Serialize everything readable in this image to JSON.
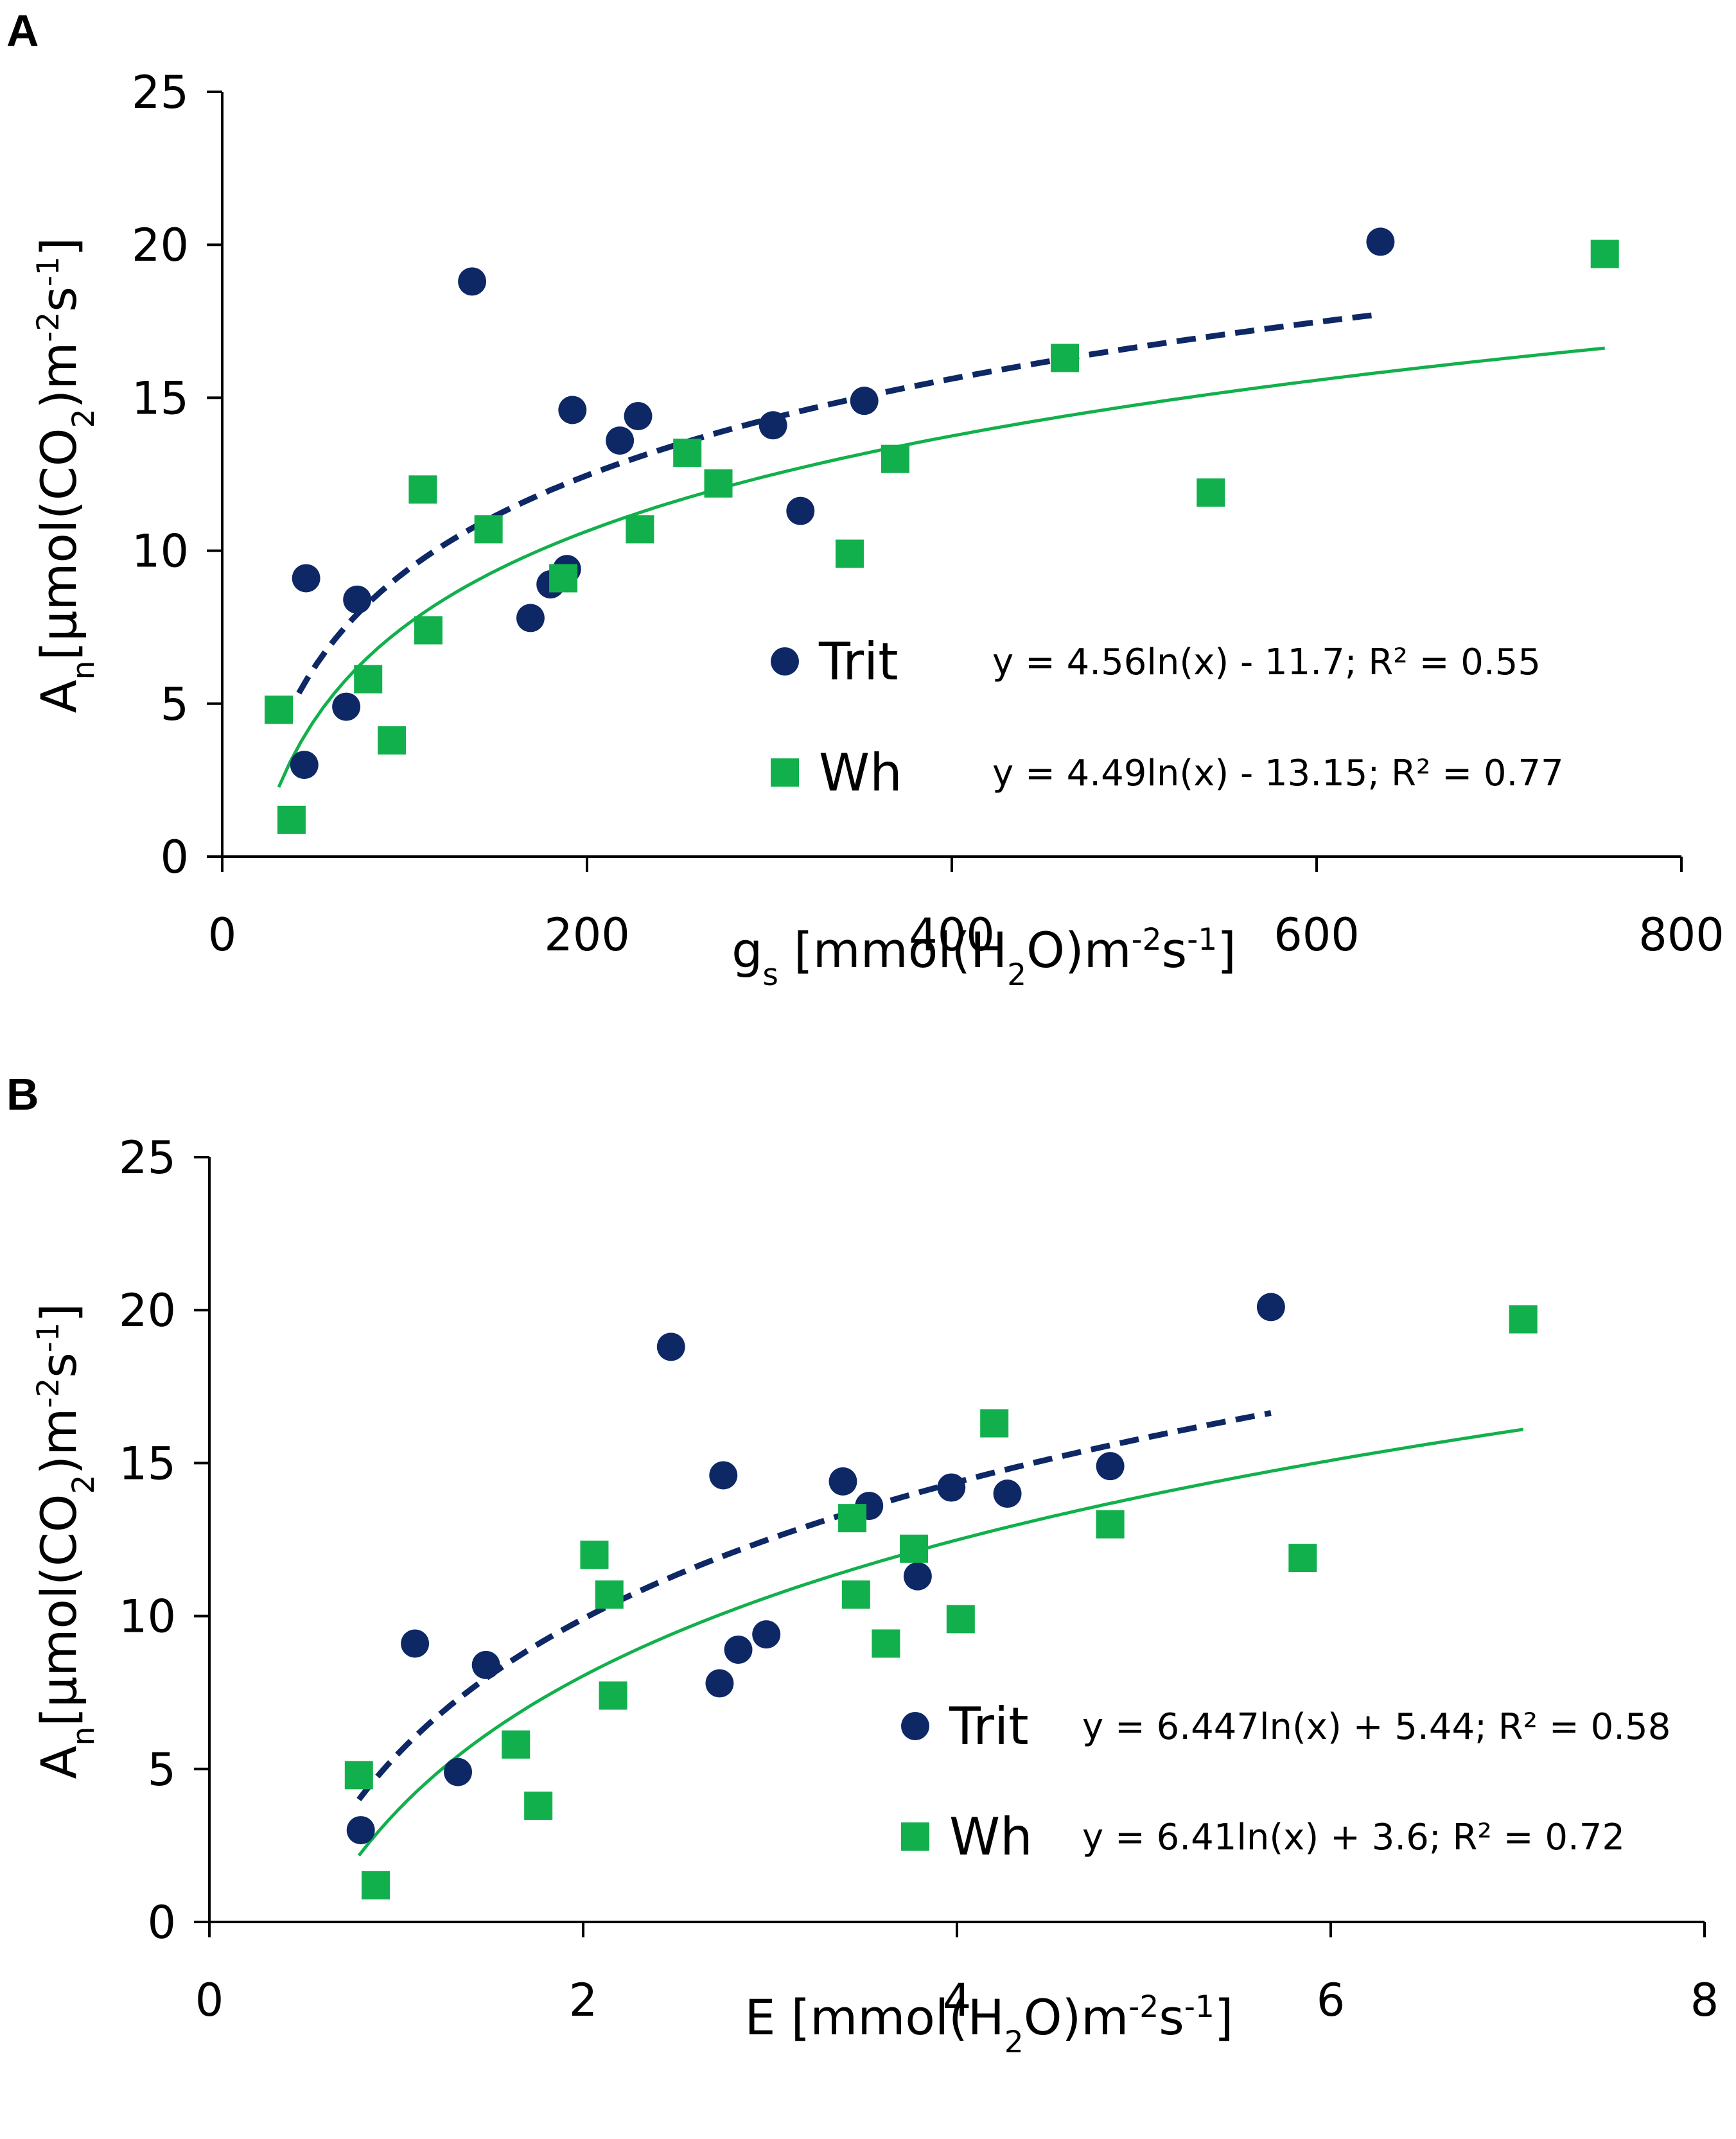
{
  "colors": {
    "trit": "#0e2866",
    "wh": "#12b04c",
    "axis": "#000000"
  },
  "chart_data": [
    {
      "panel": "A",
      "type": "scatter",
      "xlabel": {
        "base": "g",
        "sub": "s",
        "text": " [mmol(H",
        "sub2": "2",
        "text2": "O)m",
        "sup": "-2",
        "text3": "s",
        "sup2": "-1",
        "text4": "]"
      },
      "ylabel": {
        "base": "A",
        "sub": "n",
        "text": "[µmol(CO",
        "sub2": "2",
        "text2": ")m",
        "sup": "-2",
        "text3": "s",
        "sup2": "-1",
        "text4": "]"
      },
      "xlim": [
        0,
        800
      ],
      "ylim": [
        0,
        25
      ],
      "xticks": [
        "0",
        "200",
        "400",
        "600",
        "800"
      ],
      "yticks": [
        "0",
        "5",
        "10",
        "15",
        "20",
        "25"
      ],
      "series": [
        {
          "name": "Trit",
          "marker": "circle",
          "equation": "y = 4.56ln(x) - 11.7; R² = 0.55",
          "fit": {
            "a": 4.56,
            "b": -11.7,
            "from": 42,
            "to": 635,
            "dashed": true
          },
          "points": [
            [
              45,
              3.0
            ],
            [
              46,
              9.1
            ],
            [
              68,
              4.9
            ],
            [
              74,
              8.4
            ],
            [
              137,
              18.8
            ],
            [
              169,
              7.8
            ],
            [
              180,
              8.9
            ],
            [
              189,
              9.4
            ],
            [
              192,
              14.6
            ],
            [
              218,
              13.6
            ],
            [
              228,
              14.4
            ],
            [
              302,
              14.1
            ],
            [
              317,
              11.3
            ],
            [
              352,
              14.9
            ],
            [
              635,
              20.1
            ]
          ]
        },
        {
          "name": "Wh",
          "marker": "square",
          "equation": "y = 4.49ln(x) - 13.15; R² = 0.77",
          "fit": {
            "a": 4.49,
            "b": -13.15,
            "from": 31,
            "to": 758,
            "dashed": false
          },
          "points": [
            [
              31,
              4.8
            ],
            [
              38,
              1.2
            ],
            [
              80,
              5.8
            ],
            [
              93,
              3.8
            ],
            [
              110,
              12.0
            ],
            [
              113,
              7.4
            ],
            [
              146,
              10.7
            ],
            [
              187,
              9.1
            ],
            [
              229,
              10.7
            ],
            [
              255,
              13.2
            ],
            [
              272,
              12.2
            ],
            [
              344,
              9.9
            ],
            [
              369,
              13.0
            ],
            [
              462,
              16.3
            ],
            [
              542,
              11.9
            ],
            [
              758,
              19.7
            ]
          ]
        }
      ]
    },
    {
      "panel": "B",
      "type": "scatter",
      "xlabel": {
        "base": "E",
        "sub": "",
        "text": " [mmol(H",
        "sub2": "2",
        "text2": "O)m",
        "sup": "-2",
        "text3": "s",
        "sup2": "-1",
        "text4": "]"
      },
      "ylabel": {
        "base": "A",
        "sub": "n",
        "text": "[µmol(CO",
        "sub2": "2",
        "text2": ")m",
        "sup": "-2",
        "text3": "s",
        "sup2": "-1",
        "text4": "]"
      },
      "xlim": [
        0,
        8
      ],
      "ylim": [
        0,
        25
      ],
      "xticks": [
        "0",
        "2",
        "4",
        "6",
        "8"
      ],
      "yticks": [
        "0",
        "5",
        "10",
        "15",
        "20",
        "25"
      ],
      "series": [
        {
          "name": "Trit",
          "marker": "circle",
          "equation": "y = 6.447ln(x) + 5.44; R² = 0.58",
          "fit": {
            "a": 6.447,
            "b": 5.44,
            "from": 0.8,
            "to": 5.68,
            "dashed": true
          },
          "points": [
            [
              0.81,
              3.0
            ],
            [
              1.1,
              9.1
            ],
            [
              1.33,
              4.9
            ],
            [
              1.48,
              8.4
            ],
            [
              2.47,
              18.8
            ],
            [
              2.73,
              7.8
            ],
            [
              2.75,
              14.6
            ],
            [
              2.83,
              8.9
            ],
            [
              2.98,
              9.4
            ],
            [
              3.39,
              14.4
            ],
            [
              3.53,
              13.6
            ],
            [
              3.79,
              11.3
            ],
            [
              3.97,
              14.2
            ],
            [
              4.27,
              14.0
            ],
            [
              4.82,
              14.9
            ],
            [
              5.68,
              20.1
            ]
          ]
        },
        {
          "name": "Wh",
          "marker": "square",
          "equation": "y = 6.41ln(x) + 3.6; R² = 0.72",
          "fit": {
            "a": 6.41,
            "b": 3.6,
            "from": 0.8,
            "to": 7.03,
            "dashed": false
          },
          "points": [
            [
              0.8,
              4.8
            ],
            [
              0.89,
              1.2
            ],
            [
              1.64,
              5.8
            ],
            [
              1.76,
              3.8
            ],
            [
              2.06,
              12.0
            ],
            [
              2.14,
              10.7
            ],
            [
              2.16,
              7.4
            ],
            [
              3.44,
              13.2
            ],
            [
              3.46,
              10.7
            ],
            [
              3.62,
              9.1
            ],
            [
              3.77,
              12.2
            ],
            [
              4.02,
              9.9
            ],
            [
              4.2,
              16.3
            ],
            [
              4.82,
              13.0
            ],
            [
              5.85,
              11.9
            ],
            [
              7.03,
              19.7
            ]
          ]
        }
      ]
    }
  ]
}
